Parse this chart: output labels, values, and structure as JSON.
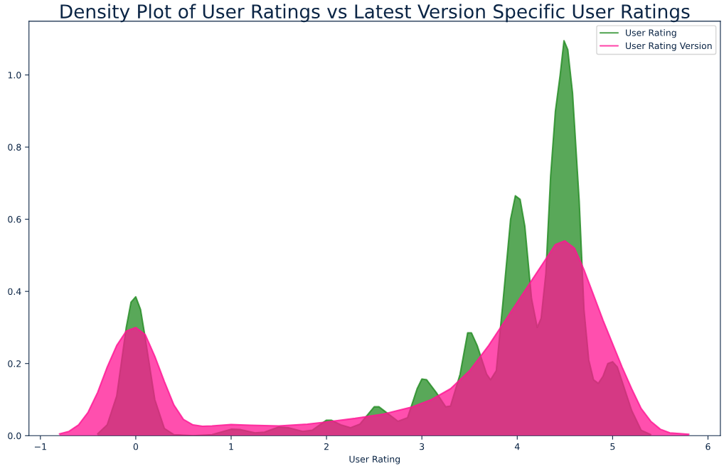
{
  "chart_data": {
    "type": "area",
    "title": "Density Plot of User Ratings vs Latest Version Specific User Ratings",
    "xlabel": "User Rating",
    "series": [
      {
        "name": "User Rating",
        "color": "#228b22",
        "x": [
          -0.4,
          -0.3,
          -0.2,
          -0.1,
          -0.05,
          0,
          0.05,
          0.1,
          0.2,
          0.3,
          0.4,
          0.6,
          0.8,
          1.0,
          1.1,
          1.25,
          1.35,
          1.5,
          1.6,
          1.75,
          1.85,
          2.0,
          2.05,
          2.15,
          2.25,
          2.35,
          2.5,
          2.55,
          2.65,
          2.75,
          2.85,
          2.95,
          3.0,
          3.05,
          3.15,
          3.25,
          3.3,
          3.4,
          3.48,
          3.52,
          3.58,
          3.68,
          3.72,
          3.78,
          3.85,
          3.93,
          3.98,
          4.03,
          4.08,
          4.15,
          4.21,
          4.25,
          4.3,
          4.35,
          4.4,
          4.45,
          4.49,
          4.53,
          4.58,
          4.65,
          4.7,
          4.75,
          4.8,
          4.85,
          4.9,
          4.95,
          5.0,
          5.05,
          5.1,
          5.2,
          5.3,
          5.4
        ],
        "values": [
          0.005,
          0.03,
          0.11,
          0.3,
          0.37,
          0.385,
          0.35,
          0.27,
          0.1,
          0.02,
          0.003,
          0.0,
          0.003,
          0.018,
          0.017,
          0.008,
          0.01,
          0.024,
          0.022,
          0.012,
          0.015,
          0.043,
          0.043,
          0.03,
          0.022,
          0.032,
          0.08,
          0.08,
          0.06,
          0.04,
          0.05,
          0.13,
          0.157,
          0.155,
          0.12,
          0.08,
          0.082,
          0.17,
          0.285,
          0.285,
          0.25,
          0.17,
          0.155,
          0.18,
          0.37,
          0.6,
          0.665,
          0.655,
          0.58,
          0.38,
          0.3,
          0.325,
          0.45,
          0.72,
          0.9,
          1.0,
          1.095,
          1.07,
          0.95,
          0.65,
          0.35,
          0.21,
          0.155,
          0.145,
          0.165,
          0.2,
          0.205,
          0.19,
          0.15,
          0.07,
          0.015,
          0.003
        ]
      },
      {
        "name": "User Rating Version",
        "color": "#ff1493",
        "x": [
          -0.8,
          -0.7,
          -0.6,
          -0.5,
          -0.4,
          -0.3,
          -0.2,
          -0.1,
          0,
          0.1,
          0.2,
          0.3,
          0.4,
          0.5,
          0.6,
          0.7,
          0.8,
          1.0,
          1.2,
          1.5,
          1.8,
          2.0,
          2.3,
          2.6,
          2.9,
          3.1,
          3.3,
          3.5,
          3.7,
          3.9,
          4.1,
          4.3,
          4.4,
          4.5,
          4.6,
          4.7,
          4.8,
          4.9,
          5.0,
          5.1,
          5.2,
          5.3,
          5.4,
          5.5,
          5.6,
          5.8
        ],
        "values": [
          0.005,
          0.012,
          0.03,
          0.065,
          0.12,
          0.19,
          0.25,
          0.29,
          0.3,
          0.28,
          0.22,
          0.15,
          0.085,
          0.045,
          0.03,
          0.026,
          0.027,
          0.031,
          0.029,
          0.027,
          0.032,
          0.038,
          0.048,
          0.06,
          0.08,
          0.1,
          0.13,
          0.18,
          0.25,
          0.33,
          0.41,
          0.49,
          0.53,
          0.54,
          0.52,
          0.46,
          0.39,
          0.32,
          0.255,
          0.19,
          0.13,
          0.075,
          0.04,
          0.018,
          0.008,
          0.004
        ]
      }
    ],
    "xlim": [
      -1.12,
      6.13
    ],
    "ylim": [
      0,
      1.149
    ],
    "xticks": [
      {
        "value": -1,
        "label": "−1"
      },
      0,
      1,
      2,
      3,
      4,
      5,
      6
    ],
    "yticks": [
      {
        "value": 0,
        "label": "0.0"
      },
      0.2,
      0.4,
      0.6,
      0.8,
      {
        "value": 1.0,
        "label": "1.0"
      }
    ],
    "grid": false,
    "legend": "top right"
  }
}
